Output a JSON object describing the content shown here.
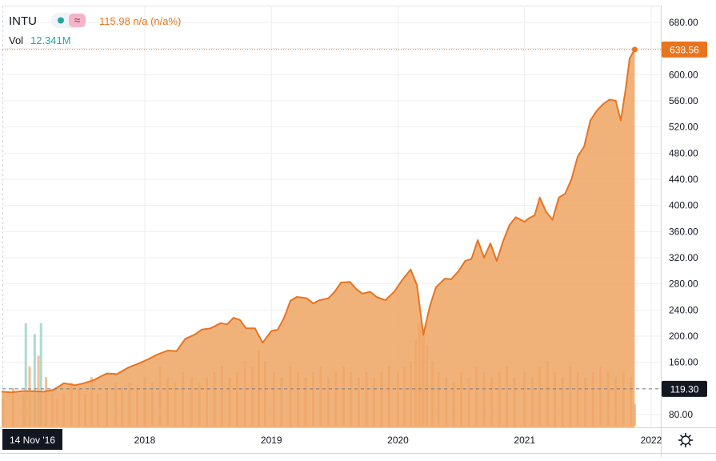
{
  "header": {
    "symbol": "INTU",
    "change_text": "115.98 n/a (n/a%)",
    "volume_label": "Vol",
    "volume_value": "12.341M",
    "marker_symbol": "≈"
  },
  "footer": {
    "start_date_label": "14 Nov '16",
    "settings_icon": "gear-icon"
  },
  "colors": {
    "line": "#e8741e",
    "area": "#eea463",
    "volume_up": "#f2a874",
    "volume_down": "#8ed0c2",
    "badge_last": "#e8741e",
    "badge_ref": "#131722",
    "grid": "#eeeeee",
    "axis_text": "#131722"
  },
  "chart_data": {
    "type": "area",
    "title": "INTU",
    "y_axis_side": "right",
    "ylim": [
      60,
      700
    ],
    "x_range": [
      2016.87,
      2022.0
    ],
    "y_ticks": [
      "80.00",
      "120.00",
      "160.00",
      "200.00",
      "240.00",
      "280.00",
      "320.00",
      "360.00",
      "400.00",
      "440.00",
      "480.00",
      "520.00",
      "560.00",
      "600.00",
      "640.00",
      "680.00"
    ],
    "x_ticks": [
      "2018",
      "2019",
      "2020",
      "2021",
      "2022"
    ],
    "last_price": "638.56",
    "last_price_value": 638.56,
    "reference_price": "119.30",
    "reference_value": 119.3,
    "series": [
      {
        "values": [
          [
            2016.87,
            115
          ],
          [
            2016.95,
            114
          ],
          [
            2017.03,
            116
          ],
          [
            2017.1,
            116
          ],
          [
            2017.2,
            115
          ],
          [
            2017.28,
            118
          ],
          [
            2017.36,
            128
          ],
          [
            2017.45,
            125
          ],
          [
            2017.52,
            128
          ],
          [
            2017.6,
            133
          ],
          [
            2017.7,
            143
          ],
          [
            2017.78,
            142
          ],
          [
            2017.87,
            152
          ],
          [
            2017.95,
            158
          ],
          [
            2018.03,
            165
          ],
          [
            2018.1,
            172
          ],
          [
            2018.18,
            178
          ],
          [
            2018.25,
            177
          ],
          [
            2018.32,
            196
          ],
          [
            2018.4,
            203
          ],
          [
            2018.45,
            210
          ],
          [
            2018.52,
            212
          ],
          [
            2018.6,
            220
          ],
          [
            2018.65,
            218
          ],
          [
            2018.7,
            228
          ],
          [
            2018.75,
            225
          ],
          [
            2018.8,
            212
          ],
          [
            2018.87,
            212
          ],
          [
            2018.93,
            190
          ],
          [
            2019.0,
            208
          ],
          [
            2019.05,
            210
          ],
          [
            2019.1,
            228
          ],
          [
            2019.15,
            254
          ],
          [
            2019.2,
            260
          ],
          [
            2019.28,
            258
          ],
          [
            2019.33,
            250
          ],
          [
            2019.38,
            255
          ],
          [
            2019.45,
            258
          ],
          [
            2019.5,
            268
          ],
          [
            2019.55,
            282
          ],
          [
            2019.62,
            283
          ],
          [
            2019.67,
            272
          ],
          [
            2019.72,
            265
          ],
          [
            2019.78,
            268
          ],
          [
            2019.83,
            260
          ],
          [
            2019.9,
            255
          ],
          [
            2019.97,
            268
          ],
          [
            2020.03,
            285
          ],
          [
            2020.1,
            302
          ],
          [
            2020.15,
            278
          ],
          [
            2020.2,
            202
          ],
          [
            2020.25,
            245
          ],
          [
            2020.3,
            275
          ],
          [
            2020.37,
            288
          ],
          [
            2020.42,
            287
          ],
          [
            2020.48,
            300
          ],
          [
            2020.53,
            315
          ],
          [
            2020.58,
            318
          ],
          [
            2020.63,
            347
          ],
          [
            2020.68,
            320
          ],
          [
            2020.73,
            342
          ],
          [
            2020.78,
            315
          ],
          [
            2020.83,
            345
          ],
          [
            2020.88,
            370
          ],
          [
            2020.93,
            382
          ],
          [
            2021.0,
            375
          ],
          [
            2021.03,
            380
          ],
          [
            2021.08,
            385
          ],
          [
            2021.12,
            412
          ],
          [
            2021.17,
            390
          ],
          [
            2021.22,
            378
          ],
          [
            2021.27,
            412
          ],
          [
            2021.32,
            418
          ],
          [
            2021.37,
            440
          ],
          [
            2021.42,
            475
          ],
          [
            2021.47,
            490
          ],
          [
            2021.52,
            530
          ],
          [
            2021.57,
            545
          ],
          [
            2021.62,
            555
          ],
          [
            2021.67,
            562
          ],
          [
            2021.72,
            560
          ],
          [
            2021.76,
            530
          ],
          [
            2021.8,
            580
          ],
          [
            2021.83,
            625
          ],
          [
            2021.87,
            638.56
          ]
        ]
      }
    ],
    "volume": {
      "max_value": 20,
      "bars": [
        [
          2016.88,
          5
        ],
        [
          2016.96,
          7
        ],
        [
          2017.04,
          6
        ],
        [
          2017.06,
          19
        ],
        [
          2017.09,
          11
        ],
        [
          2017.13,
          17
        ],
        [
          2017.16,
          13
        ],
        [
          2017.18,
          19
        ],
        [
          2017.22,
          9
        ],
        [
          2017.27,
          6
        ],
        [
          2017.31,
          5
        ],
        [
          2017.36,
          6
        ],
        [
          2017.42,
          8
        ],
        [
          2017.48,
          7
        ],
        [
          2017.53,
          6
        ],
        [
          2017.58,
          9
        ],
        [
          2017.63,
          6
        ],
        [
          2017.7,
          7
        ],
        [
          2017.77,
          8
        ],
        [
          2017.82,
          7
        ],
        [
          2017.88,
          8
        ],
        [
          2017.94,
          7
        ],
        [
          2018.0,
          9
        ],
        [
          2018.06,
          8
        ],
        [
          2018.12,
          11
        ],
        [
          2018.18,
          9
        ],
        [
          2018.24,
          8
        ],
        [
          2018.3,
          10
        ],
        [
          2018.37,
          9
        ],
        [
          2018.43,
          8
        ],
        [
          2018.49,
          9
        ],
        [
          2018.55,
          10
        ],
        [
          2018.61,
          11
        ],
        [
          2018.67,
          9
        ],
        [
          2018.73,
          10
        ],
        [
          2018.79,
          12
        ],
        [
          2018.85,
          11
        ],
        [
          2018.9,
          14
        ],
        [
          2018.95,
          12
        ],
        [
          2019.02,
          10
        ],
        [
          2019.08,
          9
        ],
        [
          2019.15,
          11
        ],
        [
          2019.21,
          10
        ],
        [
          2019.27,
          9
        ],
        [
          2019.33,
          10
        ],
        [
          2019.39,
          11
        ],
        [
          2019.45,
          9
        ],
        [
          2019.51,
          10
        ],
        [
          2019.57,
          11
        ],
        [
          2019.63,
          10
        ],
        [
          2019.69,
          9
        ],
        [
          2019.75,
          10
        ],
        [
          2019.81,
          9
        ],
        [
          2019.87,
          10
        ],
        [
          2019.93,
          11
        ],
        [
          2020.0,
          10
        ],
        [
          2020.05,
          11
        ],
        [
          2020.1,
          12
        ],
        [
          2020.14,
          16
        ],
        [
          2020.17,
          19
        ],
        [
          2020.2,
          18
        ],
        [
          2020.23,
          15
        ],
        [
          2020.27,
          12
        ],
        [
          2020.32,
          10
        ],
        [
          2020.38,
          9
        ],
        [
          2020.44,
          8
        ],
        [
          2020.5,
          10
        ],
        [
          2020.56,
          9
        ],
        [
          2020.62,
          11
        ],
        [
          2020.68,
          10
        ],
        [
          2020.74,
          9
        ],
        [
          2020.8,
          10
        ],
        [
          2020.86,
          11
        ],
        [
          2020.92,
          9
        ],
        [
          2021.0,
          10
        ],
        [
          2021.06,
          9
        ],
        [
          2021.12,
          11
        ],
        [
          2021.18,
          12
        ],
        [
          2021.24,
          10
        ],
        [
          2021.3,
          9
        ],
        [
          2021.36,
          11
        ],
        [
          2021.42,
          10
        ],
        [
          2021.48,
          9
        ],
        [
          2021.54,
          10
        ],
        [
          2021.6,
          11
        ],
        [
          2021.66,
          10
        ],
        [
          2021.72,
          9
        ],
        [
          2021.78,
          10
        ],
        [
          2021.84,
          9
        ],
        [
          2021.87,
          4
        ]
      ]
    }
  }
}
